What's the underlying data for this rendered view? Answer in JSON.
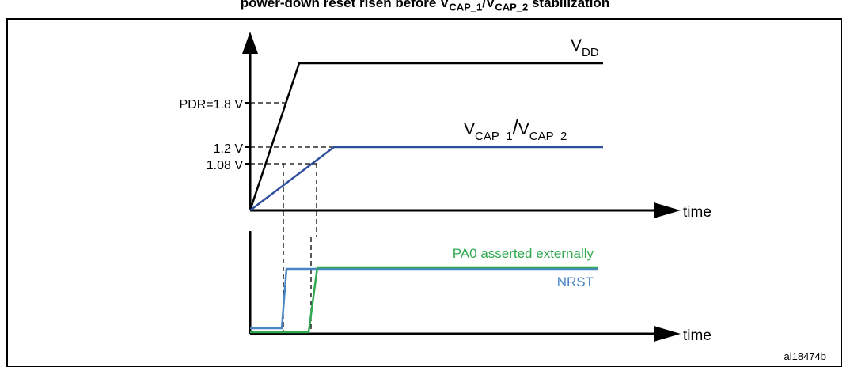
{
  "title": {
    "text": "power-down reset risen before V",
    "sub1": "CAP_1",
    "sep": "/V",
    "sub2": "CAP_2",
    "tail": " stabilization"
  },
  "signals": {
    "vdd": {
      "main": "V",
      "sub": "DD"
    },
    "vcap": {
      "main1": "V",
      "sub1": "CAP_1",
      "slash": "/",
      "main2": "V",
      "sub2": "CAP_2"
    },
    "pa0": "PA0 asserted externally",
    "nrst": "NRST"
  },
  "levels": {
    "pdr": "PDR=1.8 V",
    "v12": "1.2 V",
    "v108": "1.08 V"
  },
  "axes": {
    "upper_x": "time",
    "lower_x": "time"
  },
  "figure_id": "ai18474b",
  "colors": {
    "vdd": "#000000",
    "vcap": "#2f4f9e",
    "pa0": "#2fa84f",
    "nrst": "#4a86c8",
    "frame": "#000000"
  }
}
